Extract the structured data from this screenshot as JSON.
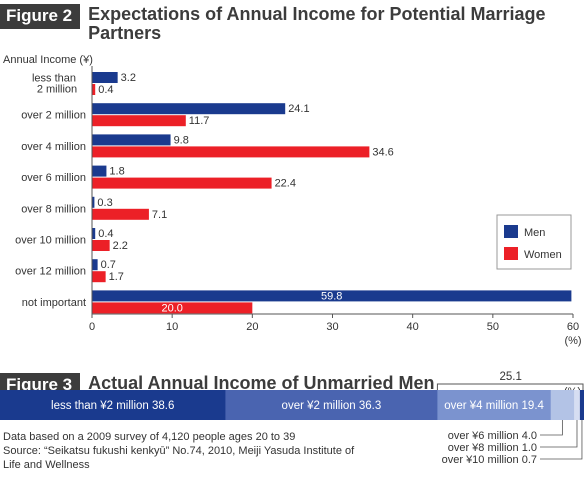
{
  "figure2": {
    "badge": "Figure 2",
    "title": "Expectations of Annual Income for Potential Marriage Partners"
  },
  "figure3": {
    "badge": "Figure 3",
    "title": "Actual Annual Income of Unmarried Men",
    "unit": "(%)"
  },
  "footnotes": {
    "line1": "Data based on a 2009 survey of 4,120 people ages 20 to 39",
    "line2": "Source: “Seikatsu fukushi kenkyū” No.74, 2010, Meiji Yasuda Institute of",
    "line3": "Life and Wellness"
  },
  "colors": {
    "men": "#1a3a8e",
    "women": "#ec2027"
  },
  "chart_data": [
    {
      "type": "bar",
      "orientation": "horizontal",
      "title": "Expectations of Annual Income for Potential Marriage Partners",
      "ylabel": "Annual Income (¥)",
      "xlabel": "(%)",
      "categories": [
        "less than 2 million",
        "over 2 million",
        "over 4 million",
        "over 6 million",
        "over 8 million",
        "over 10 million",
        "over 12 million",
        "not important"
      ],
      "series": [
        {
          "name": "Men",
          "color": "#1a3a8e",
          "values": [
            3.2,
            24.1,
            9.8,
            1.8,
            0.3,
            0.4,
            0.7,
            59.8
          ]
        },
        {
          "name": "Women",
          "color": "#ec2027",
          "values": [
            0.4,
            11.7,
            34.6,
            22.4,
            7.1,
            2.2,
            1.7,
            20.0
          ]
        }
      ],
      "value_labels": {
        "Men": [
          "3.2",
          "24.1",
          "9.8",
          "1.8",
          "0.3",
          "0.4",
          "0.7",
          "59.8"
        ],
        "Women": [
          "0.4",
          "11.7",
          "34.6",
          "22.4",
          "7.1",
          "2.2",
          "1.7",
          "20.0"
        ]
      },
      "xlim": [
        0,
        60
      ],
      "xticks": [
        "0",
        "10",
        "20",
        "30",
        "40",
        "50",
        "60"
      ],
      "legend": {
        "position": "right",
        "entries": [
          "Men",
          "Women"
        ]
      },
      "grid": false
    },
    {
      "type": "bar",
      "orientation": "stacked-horizontal",
      "title": "Actual Annual Income of Unmarried Men",
      "unit": "(%)",
      "segments": [
        {
          "label": "less than ¥2 million 38.6",
          "value": 38.6,
          "color": "#1a3a8e"
        },
        {
          "label": "over ¥2 million 36.3",
          "value": 36.3,
          "color": "#4a64b0"
        },
        {
          "label": "over ¥4 million 19.4",
          "value": 19.4,
          "color": "#7b93cf"
        },
        {
          "label": "over ¥6 million 4.0",
          "value": 4.0,
          "color": "#b3c3e6"
        },
        {
          "label": "over ¥8 million 1.0",
          "value": 1.0,
          "color": "#d6def2"
        },
        {
          "label": "over ¥10 million 0.7",
          "value": 0.7,
          "color": "#1a3a8e"
        }
      ],
      "bracket_label": "25.1",
      "xlim": [
        0,
        100
      ]
    }
  ]
}
